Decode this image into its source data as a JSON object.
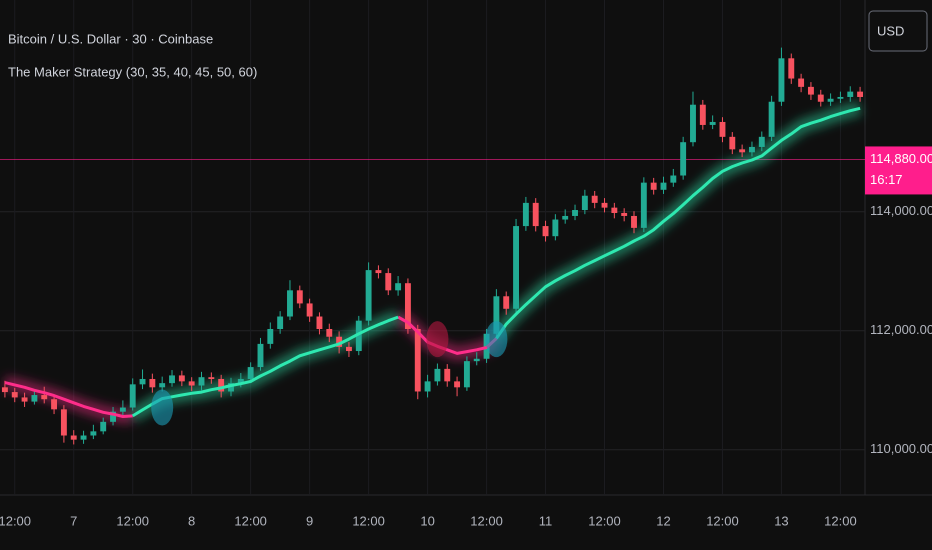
{
  "chart_data": {
    "type": "candlestick",
    "title": "Bitcoin / U.S. Dollar · 30 · Coinbase",
    "subtitle": "The Maker Strategy (30, 35, 40, 45, 50, 60)",
    "currency_button": "USD",
    "price_line": {
      "value": 114880,
      "label": "114,880.00",
      "countdown": "16:17",
      "color": "#ff1e8c"
    },
    "up_color": "#22ab94",
    "down_color": "#f7525f",
    "grid": true,
    "ylim": [
      109240,
      117560
    ],
    "yticks": [
      {
        "value": 110000,
        "label": "110,000.00"
      },
      {
        "value": 112000,
        "label": "112,000.00"
      },
      {
        "value": 114000,
        "label": "114,000.00"
      }
    ],
    "categories": [
      null,
      "12:00",
      null,
      null,
      null,
      null,
      null,
      "7",
      null,
      null,
      null,
      null,
      null,
      "12:00",
      null,
      null,
      null,
      null,
      null,
      "8",
      null,
      null,
      null,
      null,
      null,
      "12:00",
      null,
      null,
      null,
      null,
      null,
      "9",
      null,
      null,
      null,
      null,
      null,
      "12:00",
      null,
      null,
      null,
      null,
      null,
      "10",
      null,
      null,
      null,
      null,
      null,
      "12:00",
      null,
      null,
      null,
      null,
      null,
      "11",
      null,
      null,
      null,
      null,
      null,
      "12:00",
      null,
      null,
      null,
      null,
      null,
      "12",
      null,
      null,
      null,
      null,
      null,
      "12:00",
      null,
      null,
      null,
      null,
      null,
      "13",
      null,
      null,
      null,
      null,
      null,
      "12:00",
      null,
      null
    ],
    "open": [
      111050,
      110970,
      110880,
      110810,
      110920,
      110850,
      110680,
      110240,
      110170,
      110240,
      110310,
      110470,
      110640,
      110710,
      111100,
      111190,
      111050,
      111120,
      111250,
      111150,
      111080,
      111220,
      111190,
      110980,
      111120,
      111190,
      111390,
      111780,
      112030,
      112240,
      112680,
      112460,
      112240,
      112030,
      111900,
      111730,
      111660,
      112170,
      113020,
      112970,
      112680,
      112800,
      112030,
      110980,
      111150,
      111360,
      111150,
      111050,
      111490,
      111530,
      111950,
      112580,
      112370,
      113760,
      114150,
      113760,
      113590,
      113870,
      113930,
      114030,
      114270,
      114150,
      114070,
      113980,
      113930,
      113730,
      114490,
      114370,
      114490,
      114610,
      115170,
      115800,
      115460,
      115510,
      115260,
      115050,
      115000,
      115090,
      115260,
      115850,
      116580,
      116240,
      116100,
      115970,
      115850,
      115900,
      115930,
      116020
    ],
    "high": [
      111160,
      111040,
      110960,
      111010,
      111060,
      110930,
      110750,
      110330,
      110320,
      110420,
      110540,
      110720,
      110830,
      111200,
      111350,
      111280,
      111230,
      111340,
      111330,
      111220,
      111310,
      111300,
      111260,
      111210,
      111290,
      111470,
      111880,
      112140,
      112330,
      112850,
      112760,
      112540,
      112310,
      112120,
      111990,
      111810,
      112250,
      113150,
      113100,
      113050,
      112920,
      112880,
      112100,
      111260,
      111450,
      111440,
      111230,
      111570,
      111640,
      112030,
      112700,
      112660,
      113880,
      114250,
      114230,
      113850,
      113960,
      114040,
      114120,
      114370,
      114350,
      114230,
      114150,
      114060,
      114010,
      114580,
      114570,
      114590,
      114720,
      115260,
      116020,
      115880,
      115620,
      115590,
      115340,
      115130,
      115180,
      115350,
      115950,
      116760,
      116660,
      116320,
      116180,
      116050,
      115990,
      116020,
      116110,
      116100
    ],
    "low": [
      110880,
      110800,
      110720,
      110760,
      110780,
      110600,
      110120,
      110090,
      110100,
      110180,
      110260,
      110410,
      110580,
      110660,
      111020,
      110960,
      110980,
      111060,
      111070,
      110990,
      111000,
      111110,
      110880,
      110900,
      111050,
      111120,
      111330,
      111700,
      111950,
      112180,
      112380,
      112150,
      111940,
      111810,
      111620,
      111560,
      111590,
      112090,
      112880,
      112600,
      112590,
      111950,
      110850,
      110880,
      111080,
      111060,
      110900,
      110990,
      111420,
      111460,
      111880,
      112270,
      112300,
      113680,
      113670,
      113500,
      113520,
      113800,
      113860,
      113960,
      114060,
      113990,
      113890,
      113840,
      113640,
      113660,
      114290,
      114300,
      114420,
      114540,
      115100,
      115380,
      115390,
      115170,
      114970,
      114920,
      114930,
      115020,
      115190,
      115780,
      116150,
      116010,
      115880,
      115770,
      115780,
      115830,
      115850,
      115850
    ],
    "close": [
      110970,
      110880,
      110810,
      110920,
      110850,
      110680,
      110240,
      110170,
      110240,
      110310,
      110470,
      110640,
      110710,
      111100,
      111190,
      111050,
      111120,
      111250,
      111150,
      111080,
      111220,
      111190,
      110980,
      111120,
      111190,
      111390,
      111780,
      112030,
      112240,
      112680,
      112460,
      112240,
      112030,
      111900,
      111730,
      111660,
      112170,
      113020,
      112970,
      112680,
      112800,
      112030,
      110980,
      111150,
      111360,
      111150,
      111050,
      111490,
      111530,
      111950,
      112580,
      112370,
      113760,
      114150,
      113760,
      113590,
      113870,
      113930,
      114030,
      114270,
      114150,
      114070,
      113980,
      113930,
      113730,
      114490,
      114370,
      114490,
      114610,
      115170,
      115800,
      115460,
      115510,
      115260,
      115050,
      115000,
      115090,
      115260,
      115850,
      116580,
      116240,
      116100,
      115970,
      115850,
      115900,
      115930,
      116020,
      115930
    ],
    "series": [
      {
        "color": "#ff2d8a",
        "values": [
          111130,
          111090,
          111050,
          111000,
          110960,
          110910,
          110850,
          110790,
          110730,
          110680,
          110630,
          110600,
          110560,
          110570,
          null,
          null,
          null,
          null,
          null,
          null,
          null,
          null,
          null,
          null,
          null,
          null,
          null,
          null,
          null,
          null,
          null,
          null,
          null,
          null,
          null,
          null,
          null,
          null,
          null,
          null,
          112230,
          112140,
          111980,
          111810,
          111740,
          111680,
          111620,
          111650,
          111680,
          111720,
          111870,
          null,
          null,
          null,
          null,
          null,
          null,
          null,
          null,
          null,
          null,
          null,
          null,
          null,
          null,
          null,
          null,
          null,
          null,
          null,
          null,
          null,
          null,
          null,
          null,
          null,
          null,
          null,
          null,
          null,
          null,
          null,
          null,
          null,
          null,
          null,
          null,
          null
        ]
      },
      {
        "color": "#2ee8b0",
        "values": [
          null,
          null,
          null,
          null,
          null,
          null,
          null,
          null,
          null,
          null,
          null,
          null,
          null,
          110570,
          110670,
          110770,
          110860,
          110890,
          110920,
          110950,
          110970,
          111010,
          111040,
          111080,
          111110,
          111150,
          111240,
          111320,
          111410,
          111490,
          111580,
          111630,
          111680,
          111730,
          111780,
          111860,
          111950,
          112030,
          112100,
          112170,
          112230,
          null,
          null,
          null,
          null,
          null,
          null,
          null,
          null,
          null,
          111870,
          112110,
          112280,
          112440,
          112590,
          112740,
          112840,
          112930,
          113010,
          113100,
          113180,
          113260,
          113340,
          113420,
          113510,
          113590,
          113700,
          113840,
          113970,
          114120,
          114270,
          114410,
          114560,
          114680,
          114760,
          114820,
          114870,
          114940,
          115070,
          115200,
          115310,
          115430,
          115490,
          115540,
          115600,
          115650,
          115700,
          115740
        ]
      }
    ],
    "signals": [
      {
        "index": 16,
        "value": 110710,
        "color": "#1a9bb5"
      },
      {
        "index": 44,
        "value": 111860,
        "color": "#b3183f"
      },
      {
        "index": 50,
        "value": 111860,
        "color": "#1a9bb5"
      }
    ]
  }
}
